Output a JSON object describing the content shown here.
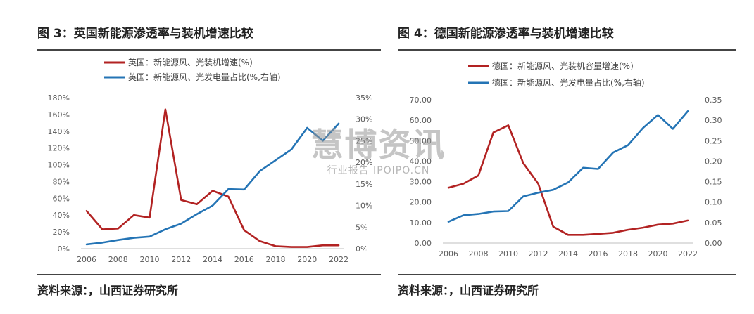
{
  "left": {
    "title": "图 3：英国新能源渗透率与装机增速比较",
    "source": "资料来源：，山西证券研究所",
    "colors": {
      "red": "#b22222",
      "blue": "#2474b5"
    }
  },
  "right": {
    "title": "图 4：德国新能源渗透率与装机增速比较",
    "source": "资料来源：，山西证券研究所",
    "colors": {
      "red": "#b22222",
      "blue": "#2474b5"
    }
  },
  "watermark": {
    "main": "慧博资讯",
    "sub": "行业报告  IPOIPO.CN"
  },
  "chart_data": [
    {
      "type": "line",
      "x": [
        2006,
        2007,
        2008,
        2009,
        2010,
        2011,
        2012,
        2013,
        2014,
        2015,
        2016,
        2017,
        2018,
        2019,
        2020,
        2021,
        2022
      ],
      "xticks": [
        "2006",
        "2008",
        "2010",
        "2012",
        "2014",
        "2016",
        "2018",
        "2020",
        "2022"
      ],
      "yticks_left": [
        "0%",
        "20%",
        "40%",
        "60%",
        "80%",
        "100%",
        "120%",
        "140%",
        "160%",
        "180%"
      ],
      "yticks_right": [
        "0%",
        "5%",
        "10%",
        "15%",
        "20%",
        "25%",
        "30%",
        "35%"
      ],
      "ylim_left": [
        0,
        180
      ],
      "ylim_right": [
        0,
        35
      ],
      "legend_position": "top-center",
      "series": [
        {
          "name": "英国：新能源风、光装机增速(%)",
          "axis": "left",
          "color": "#b22222",
          "values": [
            45,
            23,
            24,
            40,
            37,
            166,
            58,
            53,
            69,
            62,
            22,
            9,
            3,
            2,
            2,
            4,
            4
          ]
        },
        {
          "name": "英国：新能源风、光发电量占比(%,右轴)",
          "axis": "right",
          "color": "#2474b5",
          "values": [
            1.0,
            1.4,
            2.0,
            2.5,
            2.8,
            4.5,
            5.8,
            8.0,
            10.0,
            13.8,
            13.7,
            18.0,
            20.5,
            23.0,
            28.0,
            25.0,
            29.0
          ]
        }
      ]
    },
    {
      "type": "line",
      "x": [
        2006,
        2007,
        2008,
        2009,
        2010,
        2011,
        2012,
        2013,
        2014,
        2015,
        2016,
        2017,
        2018,
        2019,
        2020,
        2021,
        2022
      ],
      "xticks": [
        "2006",
        "2008",
        "2010",
        "2012",
        "2014",
        "2016",
        "2018",
        "2020",
        "2022"
      ],
      "yticks_left": [
        "0.00",
        "10.00",
        "20.00",
        "30.00",
        "40.00",
        "50.00",
        "60.00",
        "70.00"
      ],
      "yticks_right": [
        "0.00",
        "0.05",
        "0.10",
        "0.15",
        "0.20",
        "0.25",
        "0.30",
        "0.35"
      ],
      "ylim_left": [
        0,
        70
      ],
      "ylim_right": [
        0,
        0.35
      ],
      "legend_position": "top-center",
      "series": [
        {
          "name": "德国：新能源风、光装机容量增速(%)",
          "axis": "left",
          "color": "#b22222",
          "values": [
            27,
            29,
            33,
            54,
            57.5,
            39,
            29,
            8,
            4,
            4,
            4.5,
            5,
            6.5,
            7.5,
            9,
            9.5,
            11
          ]
        },
        {
          "name": "德国：新能源风、光发电量占比(%,右轴)",
          "axis": "right",
          "color": "#2474b5",
          "values": [
            0.052,
            0.068,
            0.071,
            0.077,
            0.078,
            0.114,
            0.123,
            0.13,
            0.148,
            0.184,
            0.181,
            0.221,
            0.239,
            0.281,
            0.313,
            0.279,
            0.322
          ]
        }
      ]
    }
  ]
}
